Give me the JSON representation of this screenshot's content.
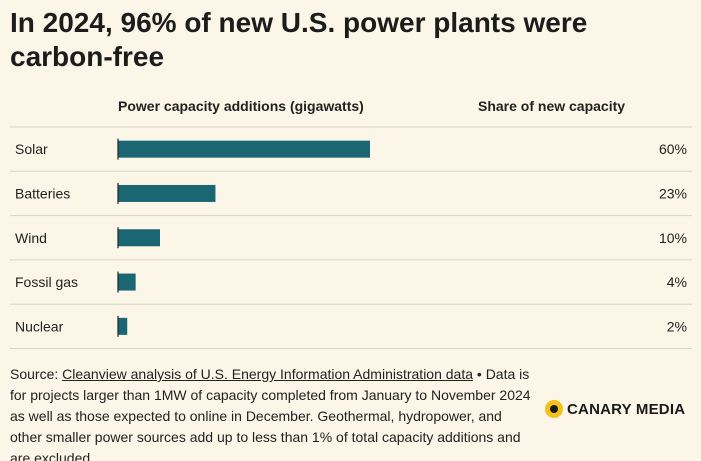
{
  "title": "In 2024, 96% of new U.S. power plants were carbon-free",
  "left_header": "Power capacity additions (gigawatts)",
  "right_header": "Share of new capacity",
  "chart_data": {
    "type": "bar",
    "orientation": "horizontal",
    "categories": [
      "Solar",
      "Batteries",
      "Wind",
      "Fossil gas",
      "Nuclear"
    ],
    "values": [
      30.0,
      11.6,
      5.0,
      2.1,
      1.1
    ],
    "share_labels": [
      "60%",
      "23%",
      "10%",
      "4%",
      "2%"
    ],
    "bar_color": "#1a6672",
    "grid": true
  },
  "source": {
    "prefix": "Source: ",
    "link": "Cleanview analysis of U.S. Energy Information Administration data",
    "text": " • Data is for projects larger than 1MW of capacity completed from January to November 2024 as well as those expected to online in December. Geothermal, hydropower, and other smaller power sources add up to less than 1% of total capacity additions and are excluded."
  },
  "logo": {
    "text": "CANARY MEDIA",
    "mark_color": "#f2c21b"
  }
}
